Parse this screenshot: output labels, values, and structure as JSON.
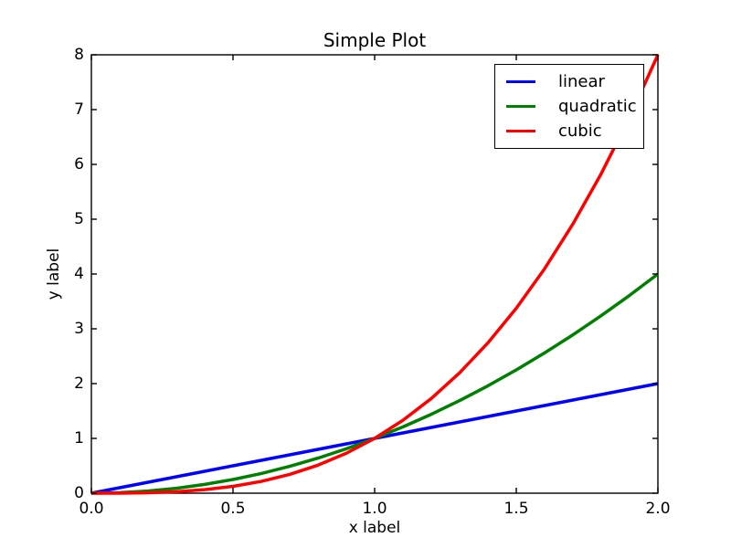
{
  "figure": {
    "background": "#ffffff",
    "frame_color": "#000000",
    "text_color": "#000000"
  },
  "chart_data": {
    "type": "line",
    "title": "Simple Plot",
    "xlabel": "x label",
    "ylabel": "y label",
    "xlim": [
      0,
      2
    ],
    "ylim": [
      0,
      8
    ],
    "grid": false,
    "legend_position": "upper right",
    "line_width": 3.5,
    "xticks": {
      "values": [
        0,
        0.5,
        1.0,
        1.5,
        2.0
      ],
      "labels": [
        "0.0",
        "0.5",
        "1.0",
        "1.5",
        "2.0"
      ]
    },
    "yticks": {
      "values": [
        0,
        1,
        2,
        3,
        4,
        5,
        6,
        7,
        8
      ],
      "labels": [
        "0",
        "1",
        "2",
        "3",
        "4",
        "5",
        "6",
        "7",
        "8"
      ]
    },
    "x": [
      0,
      0.1,
      0.2,
      0.3,
      0.4,
      0.5,
      0.6,
      0.7,
      0.8,
      0.9,
      1.0,
      1.1,
      1.2,
      1.3,
      1.4,
      1.5,
      1.6,
      1.7,
      1.8,
      1.9,
      2.0
    ],
    "series": [
      {
        "name": "linear",
        "color": "#0000ff",
        "values": [
          0,
          0.1,
          0.2,
          0.3,
          0.4,
          0.5,
          0.6,
          0.7,
          0.8,
          0.9,
          1.0,
          1.1,
          1.2,
          1.3,
          1.4,
          1.5,
          1.6,
          1.7,
          1.8,
          1.9,
          2.0
        ]
      },
      {
        "name": "quadratic",
        "color": "#008000",
        "values": [
          0,
          0.01,
          0.04,
          0.09,
          0.16,
          0.25,
          0.36,
          0.49,
          0.64,
          0.81,
          1.0,
          1.21,
          1.44,
          1.69,
          1.96,
          2.25,
          2.56,
          2.89,
          3.24,
          3.61,
          4.0
        ]
      },
      {
        "name": "cubic",
        "color": "#ff0000",
        "values": [
          0,
          0.001,
          0.008,
          0.027,
          0.064,
          0.125,
          0.216,
          0.343,
          0.512,
          0.729,
          1.0,
          1.331,
          1.728,
          2.197,
          2.744,
          3.375,
          4.096,
          4.913,
          5.832,
          6.859,
          8.0
        ]
      }
    ]
  }
}
